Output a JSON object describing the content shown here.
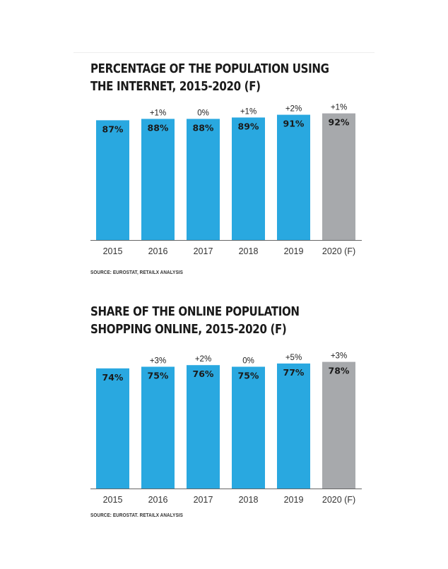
{
  "colors": {
    "bar": "#29A8E0",
    "bar_forecast": "#A7A9AC",
    "axis": "#666666",
    "value_text": "#1a1a1a"
  },
  "chart_data": [
    {
      "type": "bar",
      "title": "PERCENTAGE OF THE POPULATION USING\nTHE INTERNET, 2015-2020 (F)",
      "categories": [
        "2015",
        "2016",
        "2017",
        "2018",
        "2019",
        "2020 (F)"
      ],
      "values": [
        87,
        88,
        88,
        89,
        91,
        92
      ],
      "value_labels": [
        "87%",
        "88%",
        "88%",
        "89%",
        "91%",
        "92%"
      ],
      "change_labels": [
        "",
        "+1%",
        "0%",
        "+1%",
        "+2%",
        "+1%"
      ],
      "forecast_index": 5,
      "source": "SOURCE: EUROSTAT, RETAILX ANALYSIS",
      "xlabel": "",
      "ylabel": "",
      "ylim": [
        0,
        100
      ],
      "grid": false
    },
    {
      "type": "bar",
      "title": "SHARE OF THE ONLINE POPULATION\nSHOPPING ONLINE, 2015-2020 (F)",
      "categories": [
        "2015",
        "2016",
        "2017",
        "2018",
        "2019",
        "2020 (F)"
      ],
      "values": [
        74,
        75,
        76,
        75,
        77,
        78
      ],
      "value_labels": [
        "74%",
        "75%",
        "76%",
        "75%",
        "77%",
        "78%"
      ],
      "change_labels": [
        "",
        "+3%",
        "+2%",
        "0%",
        "+5%",
        "+3%"
      ],
      "forecast_index": 5,
      "source": "SOURCE: EUROSTAT, RETAILX ANALYSIS",
      "xlabel": "",
      "ylabel": "",
      "ylim": [
        0,
        88
      ],
      "grid": false
    }
  ]
}
